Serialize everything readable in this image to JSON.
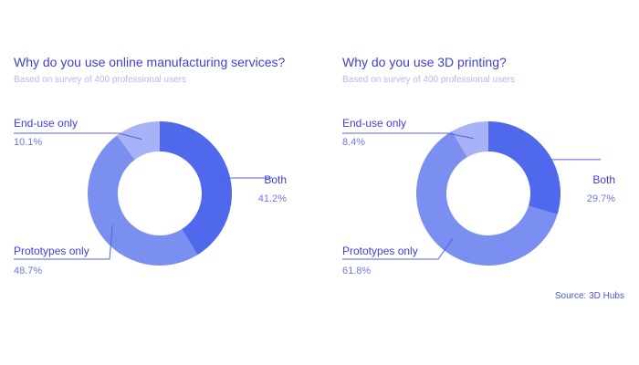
{
  "colors": {
    "title": "#3d3fd6",
    "subtitle": "#b3b8ee",
    "label": "#3d3fd6",
    "value": "#6f79e6",
    "leader": "#5560e0",
    "both": "#4f68ec",
    "prototypes": "#7a8ff0",
    "enduse": "#a7b3f6"
  },
  "source": "Source: 3D Hubs",
  "chart_data": [
    {
      "type": "pie",
      "title": "Why do you use online manufacturing services?",
      "subtitle": "Based on survey of 400 professional users",
      "donut": true,
      "legend": "none",
      "slices": [
        {
          "key": "both",
          "label": "Both",
          "value": 41.2,
          "value_text": "41.2%"
        },
        {
          "key": "prototypes",
          "label": "Prototypes only",
          "value": 48.7,
          "value_text": "48.7%"
        },
        {
          "key": "enduse",
          "label": "End-use only",
          "value": 10.1,
          "value_text": "10.1%"
        }
      ]
    },
    {
      "type": "pie",
      "title": "Why do you use 3D printing?",
      "subtitle": "Based on survey of 400 professional users",
      "donut": true,
      "legend": "none",
      "slices": [
        {
          "key": "both",
          "label": "Both",
          "value": 29.7,
          "value_text": "29.7%"
        },
        {
          "key": "prototypes",
          "label": "Prototypes only",
          "value": 61.8,
          "value_text": "61.8%"
        },
        {
          "key": "enduse",
          "label": "End-use only",
          "value": 8.4,
          "value_text": "8.4%"
        }
      ]
    }
  ]
}
